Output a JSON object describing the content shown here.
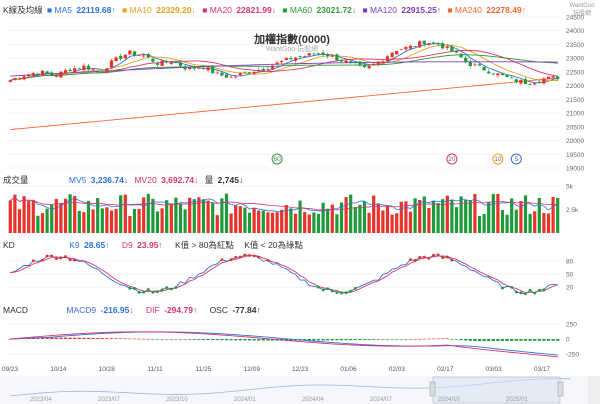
{
  "colors": {
    "up": "#e8332a",
    "down": "#1f9a3a",
    "ma5": "#2f6fde",
    "ma10": "#e5a11c",
    "ma20": "#d8356c",
    "ma60": "#2e9a3a",
    "ma120": "#7b3fbf",
    "ma240": "#ff6633",
    "k": "#2f6fde",
    "d": "#d8356c",
    "macd": "#2f6fde",
    "dif": "#d8356c"
  },
  "logo_text": "WantGoo 玩股網",
  "price": {
    "panel_label": "K線及均線",
    "ma": [
      {
        "label": "MA5",
        "value": "22119.68",
        "arrow": "↑"
      },
      {
        "label": "MA10",
        "value": "22329.20",
        "arrow": "↓"
      },
      {
        "label": "MA20",
        "value": "22821.99",
        "arrow": "↓"
      },
      {
        "label": "MA60",
        "value": "23021.72",
        "arrow": "↓"
      },
      {
        "label": "MA120",
        "value": "22915.25",
        "arrow": "↑"
      },
      {
        "label": "MA240",
        "value": "22278.49",
        "arrow": "↑"
      }
    ],
    "title": "加權指數(0000)",
    "watermark": "WantGoo 玩股網",
    "y_ticks": [
      "24500",
      "24000",
      "23500",
      "23000",
      "22500",
      "22000",
      "21500",
      "21000",
      "20500",
      "20000",
      "19500",
      "19000"
    ],
    "markers": [
      "60",
      "20",
      "10",
      "5"
    ]
  },
  "volume": {
    "panel_label": "成交量",
    "mv5_label": "MV5",
    "mv5": "3,236.74",
    "mv5_arrow": "↓",
    "mv20_label": "MV20",
    "mv20": "3,692.74",
    "mv20_arrow": "↓",
    "qty_label": "量",
    "qty": "2,745",
    "qty_arrow": "↓",
    "y_ticks": [
      "5k",
      "2.5k"
    ]
  },
  "kd": {
    "panel_label": "KD",
    "k_label": "K9",
    "k": "28.65",
    "k_arrow": "↑",
    "d_label": "D9",
    "d": "23.95",
    "d_arrow": "↑",
    "note1": "K值 > 80為紅點",
    "note2": "K值 < 20為綠點",
    "y_ticks": [
      "80",
      "50",
      "20"
    ]
  },
  "macd": {
    "panel_label": "MACD",
    "macd_label": "MACD9",
    "macd": "-216.95",
    "macd_arrow": "↓",
    "dif_label": "DIF",
    "dif": "-294.79",
    "dif_arrow": "↑",
    "osc_label": "OSC",
    "osc": "-77.84",
    "osc_arrow": "↑",
    "y_ticks": [
      "250",
      "0",
      "-250"
    ]
  },
  "date_ticks": [
    "09/23",
    "10/14",
    "10/28",
    "11/11",
    "11/25",
    "12/09",
    "12/23",
    "01/06",
    "02/03",
    "02/17",
    "03/03",
    "03/17"
  ],
  "navigator_ticks": [
    "2023/04",
    "2023/07",
    "2023/10",
    "2024/01",
    "2024/04",
    "2024/07",
    "2024/10",
    "2025/01"
  ],
  "chart_data": {
    "type": "candlestick",
    "title": "加權指數(0000)",
    "x_range": [
      "09/23",
      "03/21"
    ],
    "y_range": [
      19000,
      24500
    ],
    "series_summary": {
      "MA5": 22119.68,
      "MA10": 22329.2,
      "MA20": 22821.99,
      "MA60": 23021.72,
      "MA120": 22915.25,
      "MA240": 22278.49
    },
    "close_approx": [
      22200,
      22400,
      22500,
      22350,
      22600,
      22700,
      22500,
      22900,
      23200,
      23100,
      22800,
      22900,
      22600,
      22700,
      22400,
      22300,
      22500,
      22600,
      22800,
      23000,
      23100,
      23200,
      23000,
      22800,
      22600,
      22900,
      23300,
      23400,
      23600,
      23500,
      23200,
      22800,
      22600,
      22400,
      22200,
      22100,
      22250,
      22300
    ]
  }
}
